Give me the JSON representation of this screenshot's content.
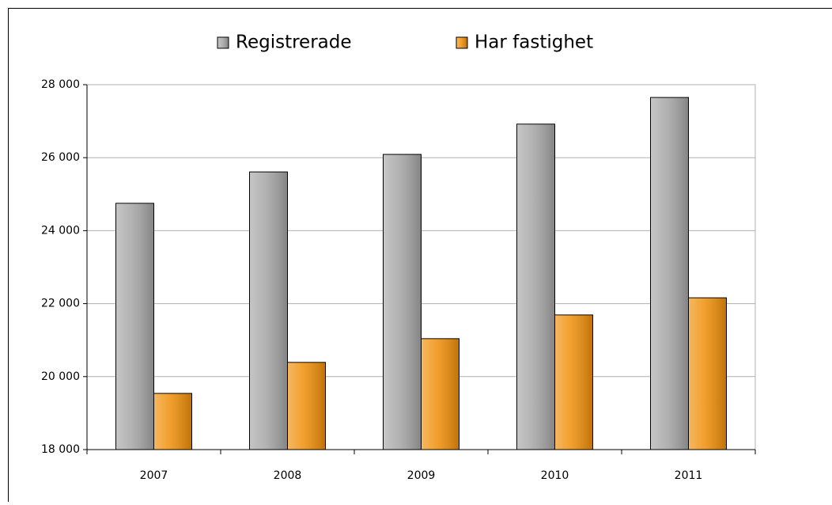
{
  "chart_data": {
    "type": "bar",
    "categories": [
      "2007",
      "2008",
      "2009",
      "2010",
      "2011"
    ],
    "series": [
      {
        "name": "Registrerade",
        "color": "#a6a6a6",
        "values": [
          24750,
          25610,
          26090,
          26920,
          27650
        ]
      },
      {
        "name": "Har fastighet",
        "color": "#f0900a",
        "values": [
          19540,
          20390,
          21040,
          21690,
          22160
        ]
      }
    ],
    "ylim": [
      18000,
      28000
    ],
    "yticks": [
      {
        "value": 18000,
        "label": "18 000"
      },
      {
        "value": 20000,
        "label": "20 000"
      },
      {
        "value": 22000,
        "label": "22 000"
      },
      {
        "value": 24000,
        "label": "24 000"
      },
      {
        "value": 26000,
        "label": "26 000"
      },
      {
        "value": 28000,
        "label": "28 000"
      }
    ],
    "grid": true,
    "legend": "top"
  }
}
